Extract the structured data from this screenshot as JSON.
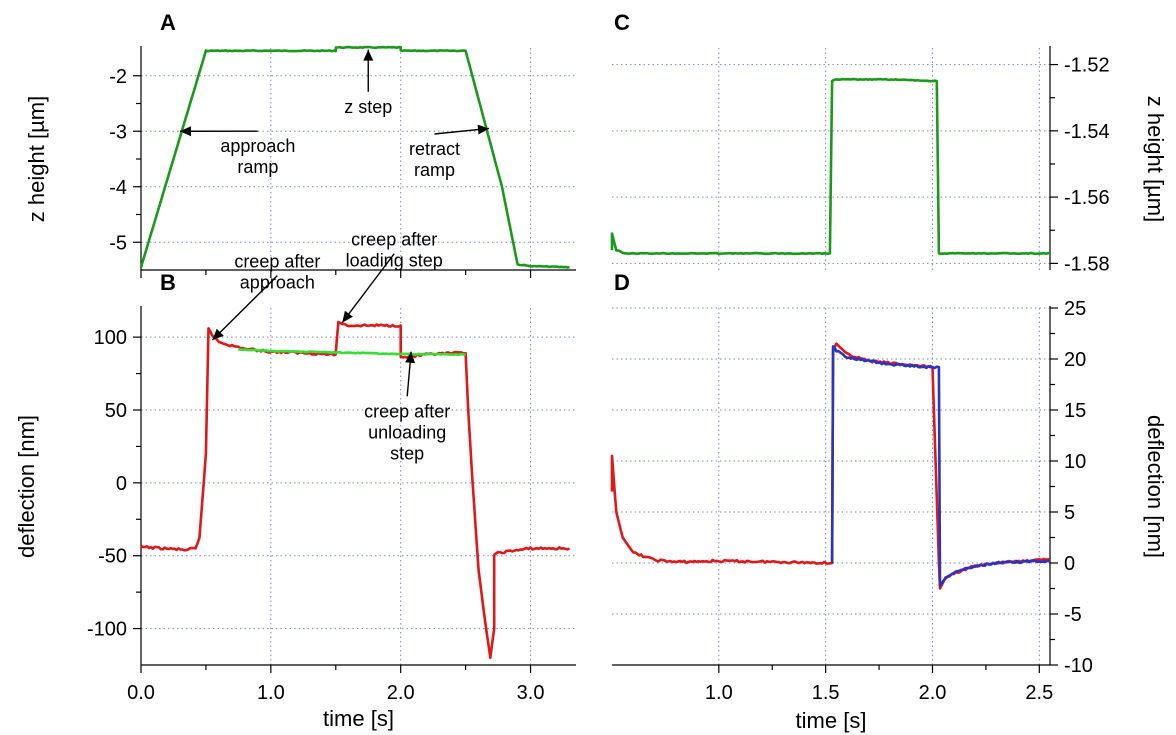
{
  "chart_data": [
    {
      "id": "A",
      "panel_label": "A",
      "type": "line",
      "ylabel": "z height [µm]",
      "xlim": [
        0,
        3.35
      ],
      "ylim": [
        -5.5,
        -1.5
      ],
      "x_ticks": [
        0.0,
        1.0,
        2.0,
        3.0
      ],
      "y_ticks": [
        -2,
        -3,
        -4,
        -5
      ],
      "y_tick_labels": [
        "-2",
        "-3",
        "-4",
        "-5"
      ],
      "grid": true,
      "series": [
        {
          "color": "#1a9a1a",
          "x": [
            0,
            0.5,
            1.5,
            1.5,
            2.0,
            2.0,
            2.5,
            2.78,
            2.9,
            3.0,
            3.3
          ],
          "y": [
            -5.45,
            -1.55,
            -1.55,
            -1.49,
            -1.49,
            -1.55,
            -1.55,
            -4.0,
            -5.4,
            -5.43,
            -5.45
          ]
        }
      ],
      "annotations": [
        {
          "text": [
            "approach",
            "ramp"
          ],
          "target": [
            0.3,
            -3.0
          ],
          "label_at": [
            0.9,
            -3.45
          ]
        },
        {
          "text": [
            "z step"
          ],
          "target": [
            1.75,
            -1.53
          ],
          "label_at": [
            1.75,
            -2.55
          ]
        },
        {
          "text": [
            "retract",
            "ramp"
          ],
          "target": [
            2.68,
            -2.95
          ],
          "label_at": [
            2.26,
            -3.5
          ]
        }
      ]
    },
    {
      "id": "B",
      "panel_label": "B",
      "type": "line",
      "ylabel": "deflection [nm]",
      "xlabel": "time [s]",
      "xlim": [
        0,
        3.35
      ],
      "ylim": [
        -125,
        120
      ],
      "x_ticks": [
        0.0,
        1.0,
        2.0,
        3.0
      ],
      "x_tick_labels": [
        "0.0",
        "1.0",
        "2.0",
        "3.0"
      ],
      "y_ticks": [
        100,
        50,
        0,
        -50,
        -100
      ],
      "y_tick_labels": [
        "100",
        "50",
        "0",
        "-50",
        "-100"
      ],
      "grid": true,
      "series": [
        {
          "color": "#e01818",
          "x": [
            0,
            0.35,
            0.42,
            0.45,
            0.5,
            0.52,
            0.55,
            0.6,
            0.7,
            0.8,
            1.0,
            1.3,
            1.5,
            1.5,
            1.52,
            1.6,
            1.8,
            2.0,
            2.0,
            2.02,
            2.2,
            2.4,
            2.5,
            2.52,
            2.55,
            2.6,
            2.65,
            2.69,
            2.72,
            2.72,
            2.75,
            3.0,
            3.3
          ],
          "y": [
            -44,
            -46,
            -45,
            -38,
            20,
            106,
            101,
            97,
            94,
            92,
            90,
            89,
            88,
            90,
            110,
            108,
            108,
            108,
            86,
            86,
            88,
            89,
            89,
            50,
            5,
            -60,
            -95,
            -120,
            -100,
            -50,
            -48,
            -45,
            -45
          ]
        },
        {
          "color": "#33e033",
          "x": [
            0.75,
            1.0,
            1.5,
            2.0,
            2.5
          ],
          "y": [
            91.5,
            90.5,
            89.5,
            88.5,
            88.0
          ]
        }
      ],
      "annotations": [
        {
          "text": [
            "creep after",
            "approach"
          ],
          "target": [
            0.55,
            98
          ],
          "label_at": [
            1.05,
            145
          ]
        },
        {
          "text": [
            "creep after",
            "loading step"
          ],
          "target": [
            1.55,
            110
          ],
          "label_at": [
            1.95,
            160
          ]
        },
        {
          "text": [
            "creep after",
            "unloading",
            "step"
          ],
          "target": [
            2.08,
            90
          ],
          "label_at": [
            2.05,
            35
          ]
        }
      ]
    },
    {
      "id": "C",
      "panel_label": "C",
      "type": "line",
      "ylabel": "z height [µm]",
      "xlim": [
        0.5,
        2.55
      ],
      "ylim": [
        -1.582,
        -1.515
      ],
      "y_ticks": [
        -1.52,
        -1.54,
        -1.56,
        -1.58
      ],
      "y_tick_labels": [
        "-1.52",
        "-1.54",
        "-1.56",
        "-1.58"
      ],
      "grid": true,
      "series": [
        {
          "color": "#1a9a1a",
          "x": [
            0.5,
            0.5,
            0.52,
            0.56,
            0.7,
            1.0,
            1.3,
            1.52,
            1.53,
            1.55,
            1.8,
            2.02,
            2.03,
            2.05,
            2.3,
            2.55
          ],
          "y": [
            -1.576,
            -1.571,
            -1.576,
            -1.577,
            -1.577,
            -1.577,
            -1.577,
            -1.577,
            -1.525,
            -1.5245,
            -1.5245,
            -1.525,
            -1.577,
            -1.577,
            -1.577,
            -1.577
          ]
        }
      ]
    },
    {
      "id": "D",
      "panel_label": "D",
      "type": "line",
      "ylabel": "deflection [nm]",
      "xlabel": "time [s]",
      "xlim": [
        0.5,
        2.55
      ],
      "ylim": [
        -10,
        25
      ],
      "x_ticks": [
        1.0,
        1.5,
        2.0,
        2.5
      ],
      "x_tick_labels": [
        "1.0",
        "1.5",
        "2.0",
        "2.5"
      ],
      "y_ticks": [
        25,
        20,
        15,
        10,
        5,
        0,
        -5,
        -10
      ],
      "y_tick_labels": [
        "25",
        "20",
        "15",
        "10",
        "5",
        "0",
        "-5",
        "-10"
      ],
      "grid": true,
      "series": [
        {
          "color": "#e01818",
          "x": [
            0.5,
            0.5,
            0.52,
            0.55,
            0.6,
            0.7,
            0.8,
            1.0,
            1.3,
            1.53,
            1.535,
            1.55,
            1.6,
            1.7,
            1.8,
            2.0,
            2.03,
            2.035,
            2.06,
            2.1,
            2.2,
            2.3,
            2.5,
            2.55
          ],
          "y": [
            7,
            10.5,
            5,
            2.5,
            1,
            0.3,
            0.1,
            0.2,
            0.1,
            0,
            21,
            21.5,
            20.5,
            19.8,
            19.6,
            19.2,
            0,
            -2.5,
            -1.5,
            -1.0,
            -0.3,
            0,
            0.3,
            0.4
          ]
        },
        {
          "color": "#2a34c4",
          "x": [
            1.53,
            1.535,
            1.55,
            1.6,
            1.7,
            1.8,
            2.0,
            2.03,
            2.035,
            2.06,
            2.1,
            2.2,
            2.3,
            2.5,
            2.55
          ],
          "y": [
            0,
            21.2,
            20.8,
            20.2,
            19.8,
            19.5,
            19.2,
            19.2,
            -2.2,
            -1.5,
            -0.9,
            -0.3,
            0,
            0.2,
            0.2
          ]
        }
      ]
    }
  ]
}
